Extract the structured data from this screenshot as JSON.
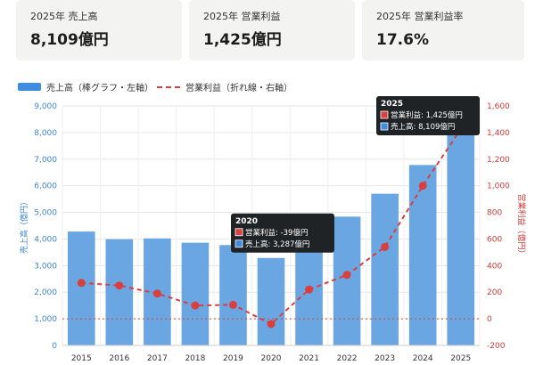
{
  "kpis": [
    {
      "label": "2025年 売上高",
      "value": "8,109億円"
    },
    {
      "label": "2025年 営業利益",
      "value": "1,425億円"
    },
    {
      "label": "2025年 営業利益率",
      "value": "17.6%"
    }
  ],
  "legend": {
    "bar": "売上高（棒グラフ・左軸）",
    "line": "営業利益（折れ線・右軸）"
  },
  "colors": {
    "bar": "#6aa6e2",
    "bar_legend": "#3f8be0",
    "line": "#d84040",
    "left_axis": "#3d86d6",
    "right_axis": "#d23a3a",
    "tooltip_bg": "#1f2326"
  },
  "chart_data": {
    "type": "bar",
    "categories": [
      "2015",
      "2016",
      "2017",
      "2018",
      "2019",
      "2020",
      "2021",
      "2022",
      "2023",
      "2024",
      "2025"
    ],
    "series": [
      {
        "name": "売上高",
        "type": "bar",
        "axis": "left",
        "values": [
          4280,
          3990,
          4020,
          3860,
          3770,
          3287,
          4020,
          4840,
          5700,
          6780,
          8109
        ]
      },
      {
        "name": "営業利益",
        "type": "line",
        "axis": "right",
        "values": [
          270,
          250,
          190,
          100,
          105,
          -39,
          220,
          330,
          540,
          1000,
          1425
        ]
      }
    ],
    "ylabel": "売上高（億円）",
    "ylabel_right": "営業利益（億円）",
    "ylim": [
      0,
      9000
    ],
    "ylim_right": [
      -200,
      1600
    ],
    "yticks": [
      "0",
      "1,000",
      "2,000",
      "3,000",
      "4,000",
      "5,000",
      "6,000",
      "7,000",
      "8,000",
      "9,000"
    ],
    "yticks_right": [
      "-200",
      "0",
      "200",
      "400",
      "600",
      "800",
      "1,000",
      "1,200",
      "1,400",
      "1,600"
    ],
    "grid": true,
    "legend_position": "top-left",
    "tooltips": [
      {
        "category": "2020",
        "title": "2020",
        "lines": [
          "営業利益: -39億円",
          "売上高: 3,287億円"
        ]
      },
      {
        "category": "2025",
        "title": "2025",
        "lines": [
          "営業利益: 1,425億円",
          "売上高: 8,109億円"
        ]
      }
    ]
  }
}
